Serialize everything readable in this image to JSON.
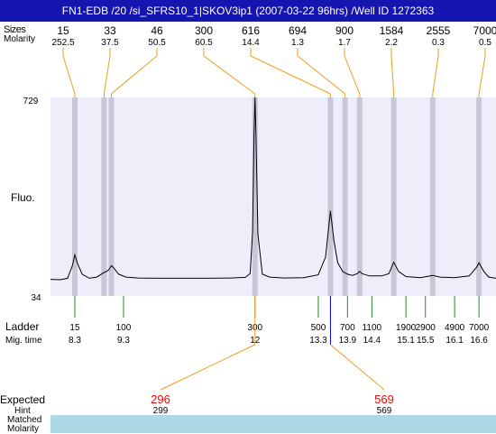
{
  "title": "FN1-EDB /20 /si_SFRS10_1|SKOV3ip1 (2007-03-22 96hrs) /Well ID 1272363",
  "labels": {
    "sizes": "Sizes",
    "molarity": "Molarity",
    "fluo": "Fluo.",
    "ladder": "Ladder",
    "mig_time": "Mig. time",
    "expected": "Expected",
    "hint": "Hint",
    "matched": "Matched",
    "molarity_bottom": "Molarity"
  },
  "colors": {
    "title_bg": "#1515b0",
    "plot_bg": "#eeeefa",
    "stripe": "#c7c7d9",
    "trace": "#000000",
    "peak_lead": "#e8a020",
    "ladder_tick": "#228b22",
    "expected_text": "#ff0000",
    "matched_bg": "#add8e6",
    "marker": "#0000cc"
  },
  "chart_data": {
    "type": "line",
    "ylabel": "Fluo.",
    "ylim": [
      34,
      729
    ],
    "yticks": [
      "729",
      "34"
    ],
    "top_peaks": [
      {
        "size": "15",
        "molarity": "252.5",
        "mig": 8.3
      },
      {
        "size": "33",
        "molarity": "37.5",
        "mig": 8.9
      },
      {
        "size": "46",
        "molarity": "50.5",
        "mig": 9.05
      },
      {
        "size": "300",
        "molarity": "60.5",
        "mig": 12.0
      },
      {
        "size": "616",
        "molarity": "14.4",
        "mig": 13.55
      },
      {
        "size": "694",
        "molarity": "1.3",
        "mig": 13.85
      },
      {
        "size": "900",
        "molarity": "1.7",
        "mig": 14.15
      },
      {
        "size": "1584",
        "molarity": "2.2",
        "mig": 14.85
      },
      {
        "size": "2555",
        "molarity": "0.3",
        "mig": 15.65
      },
      {
        "size": "7000",
        "molarity": "0.5",
        "mig": 16.6
      }
    ],
    "ladder": [
      {
        "size": "15",
        "mig": "8.3"
      },
      {
        "size": "100",
        "mig": "9.3"
      },
      {
        "size": "300",
        "mig": "12"
      },
      {
        "size": "500",
        "mig": "13.3"
      },
      {
        "size": "700",
        "mig": "13.9"
      },
      {
        "size": "1100",
        "mig": "14.4"
      },
      {
        "size": "1900",
        "mig": "15.1"
      },
      {
        "size": "2900",
        "mig": "15.5"
      },
      {
        "size": "4900",
        "mig": "16.1"
      },
      {
        "size": "7000",
        "mig": "16.6"
      }
    ],
    "trace": [
      [
        7.8,
        92
      ],
      [
        8.0,
        91
      ],
      [
        8.15,
        96
      ],
      [
        8.25,
        140
      ],
      [
        8.3,
        178
      ],
      [
        8.35,
        150
      ],
      [
        8.45,
        110
      ],
      [
        8.6,
        96
      ],
      [
        8.75,
        100
      ],
      [
        8.9,
        116
      ],
      [
        8.95,
        120
      ],
      [
        9.0,
        126
      ],
      [
        9.05,
        140
      ],
      [
        9.1,
        132
      ],
      [
        9.2,
        110
      ],
      [
        9.35,
        100
      ],
      [
        9.6,
        97
      ],
      [
        10.0,
        96
      ],
      [
        10.5,
        96
      ],
      [
        11.0,
        96
      ],
      [
        11.5,
        97
      ],
      [
        11.8,
        99
      ],
      [
        11.9,
        112
      ],
      [
        11.95,
        260
      ],
      [
        11.98,
        600
      ],
      [
        12.0,
        729
      ],
      [
        12.02,
        600
      ],
      [
        12.06,
        250
      ],
      [
        12.15,
        110
      ],
      [
        12.3,
        100
      ],
      [
        12.6,
        97
      ],
      [
        13.0,
        98
      ],
      [
        13.3,
        108
      ],
      [
        13.45,
        170
      ],
      [
        13.55,
        332
      ],
      [
        13.62,
        230
      ],
      [
        13.7,
        150
      ],
      [
        13.8,
        120
      ],
      [
        13.9,
        110
      ],
      [
        14.0,
        106
      ],
      [
        14.1,
        112
      ],
      [
        14.15,
        120
      ],
      [
        14.2,
        112
      ],
      [
        14.35,
        104
      ],
      [
        14.6,
        104
      ],
      [
        14.75,
        112
      ],
      [
        14.85,
        152
      ],
      [
        14.95,
        120
      ],
      [
        15.1,
        102
      ],
      [
        15.4,
        98
      ],
      [
        15.65,
        106
      ],
      [
        15.8,
        100
      ],
      [
        16.1,
        98
      ],
      [
        16.4,
        104
      ],
      [
        16.55,
        134
      ],
      [
        16.6,
        150
      ],
      [
        16.7,
        120
      ],
      [
        16.8,
        100
      ],
      [
        16.95,
        96
      ]
    ],
    "highlight": [
      {
        "label": "Expected",
        "expected": "296",
        "hint": "299",
        "matched": "300",
        "molarity": "60.5",
        "mig": 12.0
      },
      {
        "label": "Expected",
        "expected": "569",
        "hint": "569",
        "matched": "616",
        "molarity": "14.4",
        "mig": 13.55
      }
    ]
  }
}
